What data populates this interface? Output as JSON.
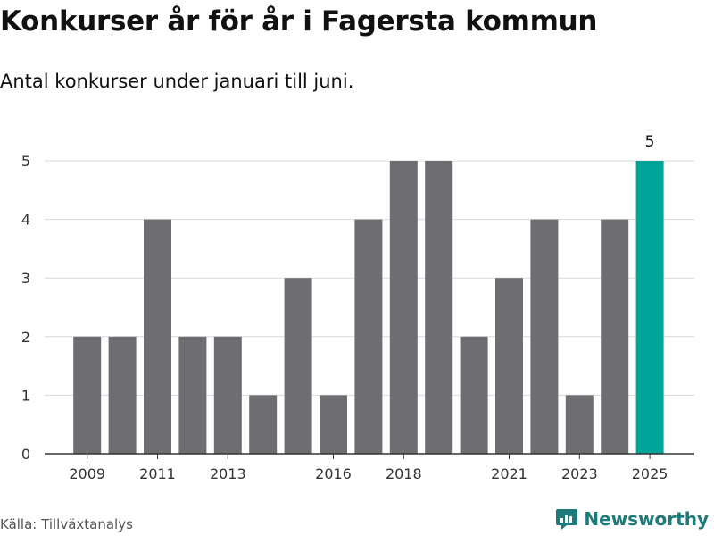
{
  "header": {
    "title": "Konkurser år för år i Fagersta kommun",
    "subtitle": "Antal konkurser under januari till juni."
  },
  "footer": {
    "source": "Källa: Tillväxtanalys",
    "brand": "Newsworthy"
  },
  "colors": {
    "bar": "#6e6d72",
    "highlight": "#00a59a",
    "grid": "#d9d9d9",
    "axis": "#333333",
    "brand": "#1d7a7a"
  },
  "icons": {
    "brand": "newsworthy-logo-icon"
  },
  "chart_data": {
    "type": "bar",
    "title": "Konkurser år för år i Fagersta kommun",
    "subtitle": "Antal konkurser under januari till juni.",
    "xlabel": "",
    "ylabel": "",
    "categories": [
      "2009",
      "2010",
      "2011",
      "2012",
      "2013",
      "2014",
      "2015",
      "2016",
      "2017",
      "2018",
      "2019",
      "2020",
      "2021",
      "2022",
      "2023",
      "2024",
      "2025"
    ],
    "values": [
      2,
      2,
      4,
      2,
      2,
      1,
      3,
      1,
      4,
      5,
      5,
      2,
      3,
      4,
      1,
      4,
      5
    ],
    "highlight_index": 16,
    "data_labels": [
      {
        "index": 16,
        "text": "5"
      }
    ],
    "x_tick_labels": [
      "2009",
      "2011",
      "2013",
      "2016",
      "2018",
      "2021",
      "2023",
      "2025"
    ],
    "y_ticks": [
      0,
      1,
      2,
      3,
      4,
      5
    ],
    "ylim": [
      0,
      5
    ],
    "grid": true,
    "legend": "none"
  }
}
